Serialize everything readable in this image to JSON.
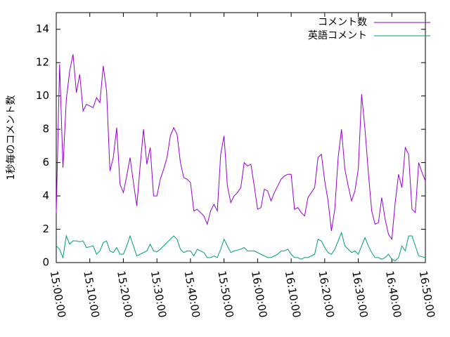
{
  "chart_data": {
    "type": "line",
    "ylabel": "1秒毎のコメント数",
    "x": [
      "15:00:00",
      "15:01:00",
      "15:02:00",
      "15:03:00",
      "15:04:00",
      "15:05:00",
      "15:06:00",
      "15:07:00",
      "15:08:00",
      "15:09:00",
      "15:10:00",
      "15:11:00",
      "15:12:00",
      "15:13:00",
      "15:14:00",
      "15:15:00",
      "15:16:00",
      "15:17:00",
      "15:18:00",
      "15:19:00",
      "15:20:00",
      "15:21:00",
      "15:22:00",
      "15:23:00",
      "15:24:00",
      "15:25:00",
      "15:26:00",
      "15:27:00",
      "15:28:00",
      "15:29:00",
      "15:30:00",
      "15:31:00",
      "15:32:00",
      "15:33:00",
      "15:34:00",
      "15:35:00",
      "15:36:00",
      "15:37:00",
      "15:38:00",
      "15:39:00",
      "15:40:00",
      "15:41:00",
      "15:42:00",
      "15:43:00",
      "15:44:00",
      "15:45:00",
      "15:46:00",
      "15:47:00",
      "15:48:00",
      "15:49:00",
      "15:50:00",
      "15:51:00",
      "15:52:00",
      "15:53:00",
      "15:54:00",
      "15:55:00",
      "15:56:00",
      "15:57:00",
      "15:58:00",
      "15:59:00",
      "16:00:00",
      "16:01:00",
      "16:02:00",
      "16:03:00",
      "16:04:00",
      "16:05:00",
      "16:06:00",
      "16:07:00",
      "16:08:00",
      "16:09:00",
      "16:10:00",
      "16:11:00",
      "16:12:00",
      "16:13:00",
      "16:14:00",
      "16:15:00",
      "16:16:00",
      "16:17:00",
      "16:18:00",
      "16:19:00",
      "16:20:00",
      "16:21:00",
      "16:22:00",
      "16:23:00",
      "16:24:00",
      "16:25:00",
      "16:26:00",
      "16:27:00",
      "16:28:00",
      "16:29:00",
      "16:30:00",
      "16:31:00",
      "16:32:00",
      "16:33:00",
      "16:34:00",
      "16:35:00",
      "16:36:00",
      "16:37:00",
      "16:38:00",
      "16:39:00",
      "16:40:00",
      "16:41:00",
      "16:42:00",
      "16:43:00",
      "16:44:00",
      "16:45:00",
      "16:46:00",
      "16:47:00",
      "16:48:00",
      "16:49:00",
      "16:50:00"
    ],
    "series": [
      {
        "name": "コメント数",
        "color": "#9400d3",
        "values": [
          3.0,
          11.9,
          5.7,
          9.8,
          11.5,
          12.5,
          10.2,
          11.3,
          9.1,
          9.5,
          9.4,
          9.3,
          9.9,
          9.6,
          11.8,
          10.3,
          5.5,
          6.3,
          8.1,
          4.7,
          4.2,
          5.2,
          6.3,
          4.8,
          3.4,
          5.8,
          8.0,
          5.9,
          6.9,
          4.0,
          4.0,
          5.0,
          5.6,
          6.3,
          7.6,
          8.1,
          7.7,
          6.0,
          5.1,
          5.0,
          4.8,
          3.1,
          3.2,
          3.0,
          2.8,
          2.3,
          3.1,
          3.5,
          3.1,
          6.5,
          7.6,
          4.6,
          3.6,
          4.0,
          4.2,
          4.5,
          6.0,
          5.8,
          5.9,
          4.6,
          3.2,
          3.3,
          4.4,
          4.3,
          3.7,
          4.2,
          4.6,
          5.0,
          5.2,
          5.3,
          5.3,
          3.2,
          3.3,
          3.0,
          2.8,
          3.9,
          4.2,
          4.5,
          6.3,
          6.5,
          4.9,
          3.7,
          1.9,
          3.2,
          6.3,
          8.0,
          5.6,
          4.6,
          3.7,
          4.3,
          5.6,
          10.1,
          8.0,
          5.4,
          3.1,
          2.3,
          2.4,
          3.9,
          2.6,
          1.7,
          1.4,
          3.6,
          5.3,
          4.5,
          6.9,
          6.5,
          3.2,
          3.0,
          6.0,
          5.4,
          4.9
        ]
      },
      {
        "name": "英語コメント",
        "color": "#009e73",
        "values": [
          1.0,
          0.8,
          0.3,
          1.6,
          1.1,
          1.3,
          1.3,
          1.25,
          1.3,
          0.9,
          0.95,
          1.0,
          0.5,
          0.7,
          1.2,
          1.3,
          0.7,
          0.6,
          0.9,
          0.5,
          0.5,
          1.0,
          1.6,
          1.0,
          0.4,
          0.5,
          0.6,
          0.7,
          1.1,
          0.7,
          0.65,
          0.8,
          1.0,
          1.2,
          1.4,
          1.6,
          1.4,
          0.8,
          0.6,
          0.7,
          0.7,
          0.4,
          0.8,
          0.7,
          0.6,
          0.3,
          0.3,
          0.4,
          0.3,
          0.8,
          1.4,
          1.0,
          0.6,
          0.7,
          0.75,
          0.8,
          0.9,
          0.7,
          0.7,
          0.7,
          0.6,
          0.5,
          0.4,
          0.3,
          0.3,
          0.4,
          0.5,
          0.7,
          0.7,
          0.8,
          0.5,
          0.3,
          0.3,
          0.2,
          0.3,
          0.3,
          0.4,
          0.5,
          1.4,
          1.3,
          0.9,
          0.6,
          0.5,
          0.8,
          1.3,
          1.8,
          1.0,
          0.8,
          0.6,
          0.7,
          0.5,
          1.0,
          1.5,
          1.0,
          0.6,
          0.3,
          0.3,
          0.2,
          0.3,
          0.5,
          0.2,
          0.1,
          0.3,
          1.0,
          0.7,
          1.6,
          1.6,
          1.0,
          0.4,
          0.35,
          0.3
        ]
      }
    ],
    "xlim": [
      "15:00:00",
      "16:50:00"
    ],
    "xticks": [
      "15:00:00",
      "15:10:00",
      "15:20:00",
      "15:30:00",
      "15:40:00",
      "15:50:00",
      "16:00:00",
      "16:10:00",
      "16:20:00",
      "16:30:00",
      "16:40:00",
      "16:50:00"
    ],
    "ylim": [
      0,
      15
    ],
    "yticks": [
      0,
      2,
      4,
      6,
      8,
      10,
      12,
      14
    ],
    "grid": false,
    "legend": "top-right"
  }
}
